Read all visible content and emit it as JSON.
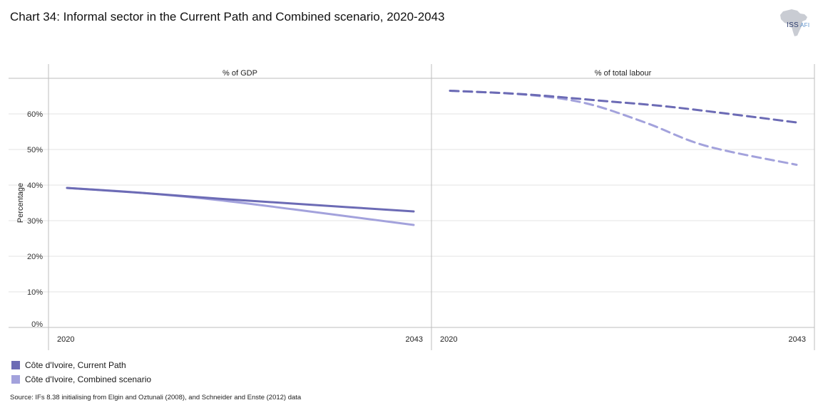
{
  "title": "Chart 34: Informal sector in the Current Path and Combined scenario, 2020-2043",
  "logo": {
    "main": "ISS",
    "sub": "AFI"
  },
  "colors": {
    "current_path": "#6c6bb5",
    "combined": "#a3a2dc",
    "grid": "#e3e3e3",
    "axis": "#bdbdbd"
  },
  "chart_data": [
    {
      "type": "line",
      "panel_title": "% of GDP",
      "line_style": "solid",
      "x": [
        2020,
        2043
      ],
      "xticks": [
        "2020",
        "2043"
      ],
      "ylabel": "Percentage",
      "ylim": [
        0,
        70
      ],
      "yticks": [
        "0%",
        "10%",
        "20%",
        "30%",
        "40%",
        "50%",
        "60%"
      ],
      "series": [
        {
          "name": "Côte d'Ivoire, Current Path",
          "points": [
            [
              2020,
              39.2
            ],
            [
              2025,
              37.8
            ],
            [
              2030,
              36.2
            ],
            [
              2035,
              34.8
            ],
            [
              2043,
              32.6
            ]
          ]
        },
        {
          "name": "Côte d'Ivoire, Combined scenario",
          "points": [
            [
              2020,
              39.2
            ],
            [
              2025,
              37.8
            ],
            [
              2030,
              35.8
            ],
            [
              2035,
              33.2
            ],
            [
              2043,
              28.8
            ]
          ]
        }
      ]
    },
    {
      "type": "line",
      "panel_title": "% of total labour",
      "line_style": "dashed",
      "x": [
        2020,
        2043
      ],
      "xticks": [
        "2020",
        "2043"
      ],
      "ylim": [
        0,
        70
      ],
      "series": [
        {
          "name": "Côte d'Ivoire, Current Path",
          "points": [
            [
              2020,
              66.5
            ],
            [
              2025,
              65.5
            ],
            [
              2030,
              63.7
            ],
            [
              2035,
              61.8
            ],
            [
              2043,
              57.6
            ]
          ]
        },
        {
          "name": "Côte d'Ivoire, Combined scenario",
          "points": [
            [
              2020,
              66.5
            ],
            [
              2025,
              65.4
            ],
            [
              2029,
              63.0
            ],
            [
              2033,
              57.5
            ],
            [
              2037,
              51.0
            ],
            [
              2043,
              45.7
            ]
          ]
        }
      ]
    }
  ],
  "legend": [
    {
      "label": "Côte d'Ivoire, Current Path"
    },
    {
      "label": "Côte d'Ivoire, Combined scenario"
    }
  ],
  "source": "Source: IFs 8.38 initialising from Elgin and Oztunali (2008), and Schneider and Enste (2012) data"
}
